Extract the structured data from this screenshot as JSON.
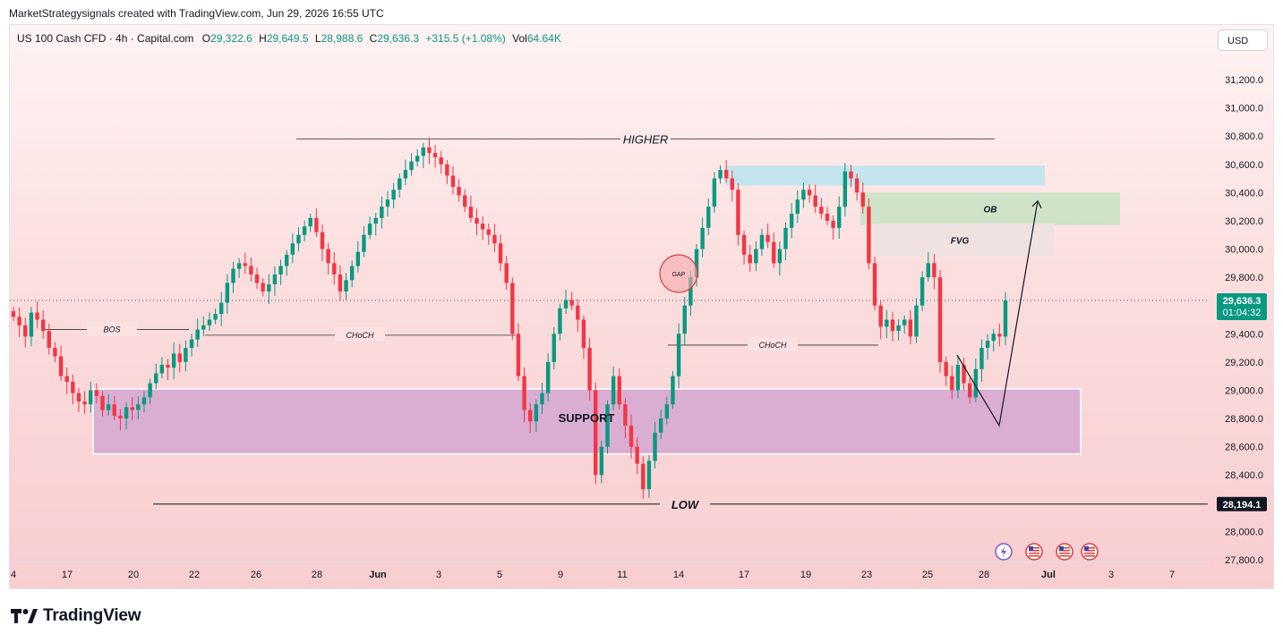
{
  "header": {
    "attribution": "MarketStrategysignals created with TradingView.com, Jun 29, 2026 16:55 UTC"
  },
  "legend": {
    "symbol": "US 100 Cash CFD · 4h · Capital.com",
    "open_label": "O",
    "open": "29,322.6",
    "high_label": "H",
    "high": "29,649.5",
    "low_label": "L",
    "low": "28,988.6",
    "close_label": "C",
    "close": "29,636.3",
    "change": "+315.5 (+1.08%)",
    "vol_label": "Vol",
    "vol": "64.64",
    "vol_unit": "K"
  },
  "currency_button": "USD",
  "brand": "TradingView",
  "colors": {
    "up": "#089981",
    "down": "#f23645",
    "support": "#cf9fd0",
    "ob": "#c9e2c4",
    "fvg": "#efe2e2",
    "liquidity": "#b8e4ee"
  },
  "chart_data": {
    "type": "candlestick",
    "y_range": [
      27700,
      31350
    ],
    "y_ticks": [
      "31,200.0",
      "31,000.0",
      "30,800.0",
      "30,600.0",
      "30,400.0",
      "30,200.0",
      "30,000.0",
      "29,800.0",
      "29,400.0",
      "29,200.0",
      "29,000.0",
      "28,800.0",
      "28,600.0",
      "28,400.0",
      "28,000.0",
      "27,800.0"
    ],
    "y_tick_values": [
      31200,
      31000,
      30800,
      30600,
      30400,
      30200,
      30000,
      29800,
      29400,
      29200,
      29000,
      28800,
      28600,
      28400,
      28000,
      27800
    ],
    "x_ticks": [
      "4",
      "17",
      "20",
      "22",
      "26",
      "28",
      "Jun",
      "3",
      "5",
      "9",
      "11",
      "14",
      "17",
      "19",
      "23",
      "25",
      "28",
      "Jul",
      "3",
      "7"
    ],
    "last_price_label": "29,636.3",
    "countdown": "01:04:32",
    "last_price": 29636.3,
    "low_label": "28,194.1",
    "low_level": 28194.1,
    "high_level": 30780,
    "annotations": {
      "higher": "HIGHER",
      "low": "LOW",
      "bos": "BOS",
      "choch1": "CHoCH",
      "choch2": "CHoCH",
      "support": "SUPPORT",
      "gap": "GAP",
      "ob": "OB",
      "fvg": "FVG"
    },
    "zones": {
      "support": [
        28550,
        29010
      ],
      "ob": [
        30170,
        30400
      ],
      "fvg": [
        29950,
        30180
      ],
      "liquidity": [
        30450,
        30590
      ]
    },
    "bos_level": 29430,
    "choch1_level": 29390,
    "choch2_level": 29320,
    "projection": [
      29250,
      28750,
      30340
    ],
    "closes": [
      29520,
      29460,
      29380,
      29550,
      29500,
      29420,
      29300,
      29240,
      29100,
      29060,
      28980,
      28920,
      28900,
      29000,
      28960,
      28860,
      28900,
      28820,
      28800,
      28880,
      28860,
      28900,
      28950,
      29050,
      29120,
      29180,
      29160,
      29260,
      29200,
      29300,
      29360,
      29430,
      29460,
      29500,
      29540,
      29620,
      29760,
      29860,
      29900,
      29880,
      29820,
      29760,
      29700,
      29750,
      29820,
      29880,
      29960,
      30040,
      30100,
      30160,
      30220,
      30120,
      30000,
      29900,
      29820,
      29700,
      29780,
      29880,
      29980,
      30100,
      30180,
      30220,
      30300,
      30350,
      30420,
      30500,
      30560,
      30620,
      30660,
      30720,
      30680,
      30650,
      30600,
      30520,
      30440,
      30380,
      30300,
      30220,
      30180,
      30140,
      30100,
      30040,
      29900,
      29760,
      29400,
      29100,
      28860,
      28780,
      28900,
      28980,
      29200,
      29400,
      29580,
      29640,
      29600,
      29500,
      29300,
      29000,
      28400,
      28600,
      28900,
      29100,
      28900,
      28750,
      28600,
      28480,
      28300,
      28500,
      28700,
      28800,
      28900,
      29100,
      29400,
      29600,
      29800,
      30000,
      30150,
      30300,
      30500,
      30560,
      30500,
      30420,
      30100,
      29960,
      29900,
      30000,
      30100,
      30050,
      29900,
      30000,
      30150,
      30250,
      30350,
      30420,
      30380,
      30300,
      30250,
      30200,
      30150,
      30300,
      30550,
      30500,
      30400,
      30300,
      29900,
      29600,
      29450,
      29500,
      29420,
      29460,
      29500,
      29380,
      29600,
      29800,
      29900,
      29800,
      29200,
      29100,
      29000,
      29180,
      29050,
      28950,
      29150,
      29300,
      29350,
      29400,
      29380,
      29636
    ]
  }
}
